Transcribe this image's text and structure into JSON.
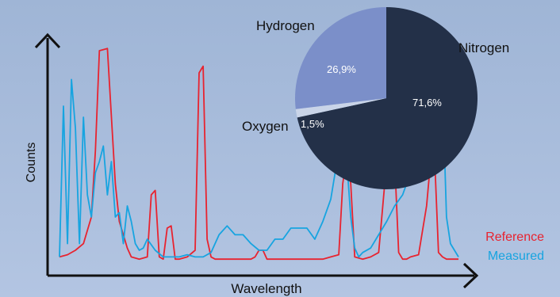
{
  "chart_data": [
    {
      "type": "line",
      "xlabel": "Wavelength",
      "ylabel": "Counts",
      "grid": false,
      "legend_position": "bottom-right",
      "ylim": [
        0,
        1
      ],
      "series": [
        {
          "name": "Reference",
          "color": "#e8232f",
          "x": [
            0,
            2,
            4,
            6,
            8,
            9,
            10,
            12,
            14,
            15,
            16,
            17,
            18,
            20,
            22,
            23,
            24,
            25,
            26,
            27,
            28,
            29,
            30,
            32,
            34,
            35,
            36,
            37,
            38,
            39,
            40,
            42,
            44,
            46,
            48,
            49,
            50,
            51,
            52,
            54,
            56,
            58,
            60,
            62,
            64,
            66,
            68,
            70,
            71,
            72,
            73,
            74,
            76,
            78,
            80,
            82,
            84,
            85,
            86,
            87,
            88,
            90,
            92,
            93,
            94,
            95,
            96,
            97,
            98,
            99,
            100
          ],
          "values": [
            0.02,
            0.03,
            0.05,
            0.08,
            0.2,
            0.5,
            0.95,
            0.96,
            0.35,
            0.18,
            0.12,
            0.06,
            0.02,
            0.01,
            0.02,
            0.3,
            0.32,
            0.02,
            0.01,
            0.15,
            0.16,
            0.01,
            0.01,
            0.02,
            0.05,
            0.85,
            0.88,
            0.1,
            0.02,
            0.01,
            0.01,
            0.01,
            0.01,
            0.01,
            0.01,
            0.02,
            0.05,
            0.05,
            0.01,
            0.01,
            0.01,
            0.01,
            0.01,
            0.01,
            0.01,
            0.01,
            0.02,
            0.03,
            0.35,
            0.48,
            0.35,
            0.02,
            0.01,
            0.02,
            0.04,
            0.45,
            0.46,
            0.04,
            0.01,
            0.01,
            0.02,
            0.03,
            0.25,
            0.45,
            0.48,
            0.04,
            0.02,
            0.01,
            0.01,
            0.01,
            0.01
          ]
        },
        {
          "name": "Measured",
          "color": "#17a4e0",
          "x": [
            0,
            1,
            2,
            3,
            4,
            5,
            6,
            7,
            8,
            9,
            10,
            11,
            12,
            13,
            14,
            15,
            16,
            17,
            18,
            19,
            20,
            21,
            22,
            24,
            26,
            28,
            30,
            32,
            34,
            36,
            38,
            40,
            42,
            44,
            46,
            48,
            50,
            52,
            54,
            56,
            58,
            60,
            62,
            64,
            66,
            68,
            70,
            71,
            72,
            73,
            74,
            75,
            76,
            78,
            80,
            82,
            84,
            86,
            87,
            88,
            89,
            90,
            91,
            92,
            93,
            94,
            95,
            96,
            97,
            98,
            100
          ],
          "values": [
            0.02,
            0.7,
            0.08,
            0.82,
            0.6,
            0.08,
            0.65,
            0.3,
            0.2,
            0.4,
            0.45,
            0.52,
            0.3,
            0.45,
            0.2,
            0.22,
            0.08,
            0.25,
            0.18,
            0.08,
            0.05,
            0.06,
            0.1,
            0.05,
            0.02,
            0.02,
            0.02,
            0.03,
            0.02,
            0.02,
            0.04,
            0.12,
            0.16,
            0.12,
            0.12,
            0.08,
            0.05,
            0.05,
            0.1,
            0.1,
            0.15,
            0.15,
            0.15,
            0.1,
            0.18,
            0.28,
            0.5,
            0.52,
            0.45,
            0.2,
            0.06,
            0.02,
            0.04,
            0.06,
            0.12,
            0.18,
            0.25,
            0.3,
            0.35,
            0.42,
            0.6,
            0.65,
            0.5,
            0.66,
            0.72,
            0.55,
            0.6,
            0.78,
            0.2,
            0.08,
            0.02
          ]
        }
      ]
    },
    {
      "type": "pie",
      "slices": [
        {
          "label": "Nitrogen",
          "value": 71.6,
          "text": "71,6%",
          "color": "#233048"
        },
        {
          "label": "Oxygen",
          "value": 1.5,
          "text": "1,5%",
          "color": "#c9d4e8"
        },
        {
          "label": "Hydrogen",
          "value": 26.9,
          "text": "26,9%",
          "color": "#7b8fc9"
        }
      ]
    }
  ],
  "labels": {
    "xlabel": "Wavelength",
    "ylabel": "Counts",
    "legend": [
      "Reference",
      "Measured"
    ]
  }
}
